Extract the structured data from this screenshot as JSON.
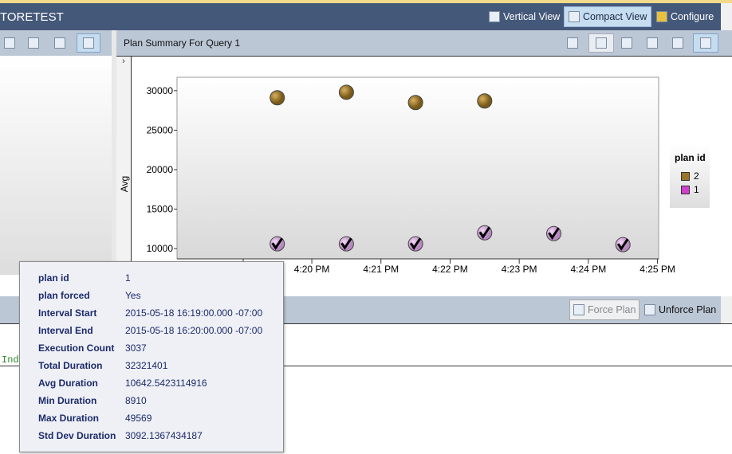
{
  "app": {
    "title": "TORETEST"
  },
  "top_toolbar": [
    {
      "label": "Vertical View",
      "icon": "vertical-view-icon",
      "selected": false
    },
    {
      "label": "Compact View",
      "icon": "compact-view-icon",
      "selected": true
    },
    {
      "label": "Configure",
      "icon": "gear-icon",
      "selected": false
    }
  ],
  "plan_summary": {
    "title": "Plan Summary For Query 1",
    "toolbar_icons": [
      "refresh-icon",
      "force-plan-icon",
      "unforce-plan-icon",
      "compare-plans-icon",
      "grid-view-icon",
      "chart-view-icon"
    ]
  },
  "bottom_toolbar": {
    "force_plan": "Force Plan",
    "unforce_plan": "Unforce Plan"
  },
  "code": {
    "text": "Ind"
  },
  "colors": {
    "plan2": "#9a7428",
    "plan1": "#d8a8e0",
    "accent": "#44587a"
  },
  "chart_data": {
    "type": "scatter",
    "ylabel": "Avg",
    "xlabel": "",
    "yticks": [
      10000,
      15000,
      20000,
      25000,
      30000
    ],
    "ylim": [
      8700,
      31700
    ],
    "xticks": [
      "4:20 PM",
      "4:21 PM",
      "4:22 PM",
      "4:23 PM",
      "4:24 PM",
      "4:25 PM"
    ],
    "xlim_minutes": [
      "4:18:03 PM",
      "4:25:01 PM"
    ],
    "legend_title": "plan id",
    "legend_position": "right",
    "series": [
      {
        "name": "2",
        "color": "#9a7428",
        "points": [
          {
            "x": "4:19:30 PM",
            "y": 29100
          },
          {
            "x": "4:20:30 PM",
            "y": 29800
          },
          {
            "x": "4:21:30 PM",
            "y": 28500
          },
          {
            "x": "4:22:30 PM",
            "y": 28700
          }
        ]
      },
      {
        "name": "1",
        "color": "#d8a8e0",
        "forced": true,
        "points": [
          {
            "x": "4:19:30 PM",
            "y": 10600
          },
          {
            "x": "4:20:30 PM",
            "y": 10600
          },
          {
            "x": "4:21:30 PM",
            "y": 10600
          },
          {
            "x": "4:22:30 PM",
            "y": 12000
          },
          {
            "x": "4:23:30 PM",
            "y": 11900
          },
          {
            "x": "4:24:30 PM",
            "y": 10500
          }
        ]
      }
    ]
  },
  "tooltip": [
    {
      "label": "plan id",
      "value": "1"
    },
    {
      "label": "plan forced",
      "value": "Yes"
    },
    {
      "label": "Interval Start",
      "value": "2015-05-18 16:19:00.000 -07:00"
    },
    {
      "label": "Interval End",
      "value": "2015-05-18 16:20:00.000 -07:00"
    },
    {
      "label": "Execution Count",
      "value": "3037"
    },
    {
      "label": "Total Duration",
      "value": "32321401"
    },
    {
      "label": "Avg Duration",
      "value": "10642.5423114916"
    },
    {
      "label": "Min Duration",
      "value": "8910"
    },
    {
      "label": "Max Duration",
      "value": "49569"
    },
    {
      "label": "Std Dev Duration",
      "value": "3092.1367434187"
    }
  ]
}
